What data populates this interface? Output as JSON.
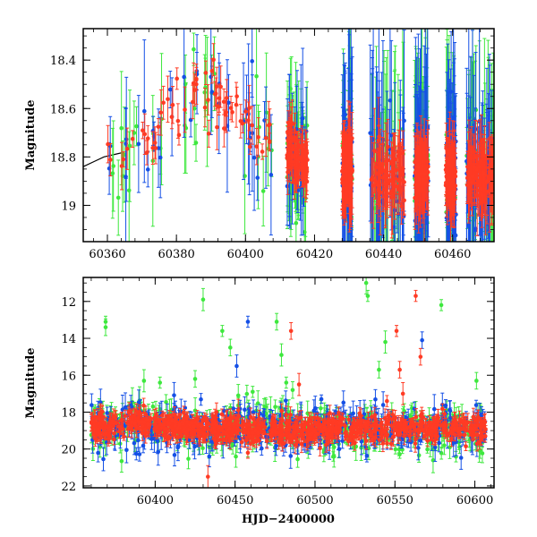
{
  "figure": {
    "colors": {
      "green": "#3ee83e",
      "blue": "#1550e6",
      "red": "#ff3b24"
    }
  },
  "chart_data": [
    {
      "type": "scatter",
      "title": "",
      "xlabel": "",
      "ylabel": "Magnitude",
      "xlim": [
        60353,
        60472
      ],
      "ylim": [
        19.15,
        18.27
      ],
      "y_inverted": true,
      "xticks": [
        60360,
        60380,
        60400,
        60420,
        60440,
        60460
      ],
      "yticks": [
        18.4,
        18.6,
        18.8,
        19
      ],
      "ytick_labels": [
        "18.4",
        "18.6",
        "18.8",
        "19"
      ],
      "error_bars": true,
      "series_colors": [
        "green",
        "blue",
        "red"
      ],
      "model_curve": {
        "color": "#000000",
        "x": [
          60353,
          60356,
          60359,
          60362,
          60365
        ],
        "y": [
          18.84,
          18.82,
          18.8,
          18.79,
          18.78
        ]
      },
      "light_curve_trend": {
        "x": [
          60360,
          60366,
          60372,
          60378,
          60383,
          60387,
          60392,
          60398,
          60404,
          60410,
          60416,
          60422,
          60430,
          60440,
          60450,
          60460,
          60472
        ],
        "y": [
          18.8,
          18.78,
          18.72,
          18.63,
          18.55,
          18.5,
          18.56,
          18.65,
          18.72,
          18.77,
          18.8,
          18.83,
          18.86,
          18.88,
          18.88,
          18.86,
          18.88
        ]
      },
      "dense_segments": [
        [
          60360,
          60408
        ],
        [
          60412,
          60418
        ],
        [
          60428,
          60431
        ],
        [
          60436,
          60446
        ],
        [
          60449,
          60453
        ],
        [
          60458,
          60461
        ],
        [
          60464,
          60472
        ]
      ]
    },
    {
      "type": "scatter",
      "title": "",
      "xlabel": "HJD−2400000",
      "ylabel": "Magnitude",
      "xlim": [
        60355,
        60612
      ],
      "ylim": [
        22.1,
        10.7
      ],
      "y_inverted": true,
      "xticks": [
        60400,
        60450,
        60500,
        60550,
        60600
      ],
      "yticks": [
        12,
        14,
        16,
        18,
        20,
        22
      ],
      "error_bars": true,
      "series_colors": [
        "green",
        "blue",
        "red"
      ],
      "baseline_magnitude": 18.9,
      "outliers": [
        {
          "series": "green",
          "x": 60369,
          "y": 13.1
        },
        {
          "series": "green",
          "x": 60369,
          "y": 13.4
        },
        {
          "series": "green",
          "x": 60393,
          "y": 16.3
        },
        {
          "series": "green",
          "x": 60403,
          "y": 16.4
        },
        {
          "series": "green",
          "x": 60425,
          "y": 16.2
        },
        {
          "series": "green",
          "x": 60430,
          "y": 11.9
        },
        {
          "series": "green",
          "x": 60442,
          "y": 13.6
        },
        {
          "series": "green",
          "x": 60447,
          "y": 14.5
        },
        {
          "series": "green",
          "x": 60452,
          "y": 17.1
        },
        {
          "series": "green",
          "x": 60461,
          "y": 16.9
        },
        {
          "series": "green",
          "x": 60476,
          "y": 13.1
        },
        {
          "series": "green",
          "x": 60479,
          "y": 14.9
        },
        {
          "series": "green",
          "x": 60482,
          "y": 16.4
        },
        {
          "series": "green",
          "x": 60486,
          "y": 16.8
        },
        {
          "series": "green",
          "x": 60532,
          "y": 11.0
        },
        {
          "series": "green",
          "x": 60533,
          "y": 11.7
        },
        {
          "series": "green",
          "x": 60540,
          "y": 15.7
        },
        {
          "series": "green",
          "x": 60544,
          "y": 14.2
        },
        {
          "series": "green",
          "x": 60579,
          "y": 12.2
        },
        {
          "series": "green",
          "x": 60601,
          "y": 16.3
        },
        {
          "series": "blue",
          "x": 60451,
          "y": 15.5
        },
        {
          "series": "blue",
          "x": 60458,
          "y": 13.1
        },
        {
          "series": "blue",
          "x": 60567,
          "y": 14.1
        },
        {
          "series": "red",
          "x": 60433,
          "y": 21.5
        },
        {
          "series": "red",
          "x": 60458,
          "y": 20.2
        },
        {
          "series": "red",
          "x": 60485,
          "y": 13.6
        },
        {
          "series": "red",
          "x": 60490,
          "y": 16.5
        },
        {
          "series": "red",
          "x": 60551,
          "y": 13.6
        },
        {
          "series": "red",
          "x": 60553,
          "y": 15.7
        },
        {
          "series": "red",
          "x": 60555,
          "y": 17.0
        },
        {
          "series": "red",
          "x": 60563,
          "y": 11.7
        },
        {
          "series": "red",
          "x": 60566,
          "y": 15.0
        },
        {
          "series": "red",
          "x": 60452,
          "y": 17.9
        },
        {
          "series": "red",
          "x": 60545,
          "y": 17.4
        }
      ]
    }
  ]
}
